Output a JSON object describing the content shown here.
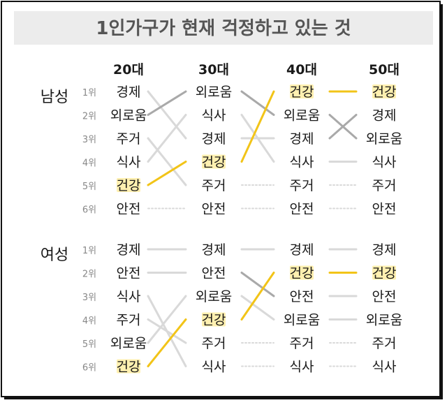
{
  "title": "1인가구가 현재 걱정하고 있는 것",
  "decades": [
    "20대",
    "30대",
    "40대",
    "50대"
  ],
  "rank_labels": [
    "1위",
    "2위",
    "3위",
    "4위",
    "5위",
    "6위"
  ],
  "highlight_item": "건강",
  "colors": {
    "highlight": "#f2c418",
    "highlight_bg": "#fff0b0",
    "dark_link": "#a9a9a9",
    "light_link": "#d9d9d9",
    "title_bg": "#ececec",
    "title_text": "#555555",
    "text": "#1a1a1a",
    "rank_text": "#888888",
    "border": "#111111"
  },
  "sections": [
    {
      "label": "남성",
      "columns": [
        [
          "경제",
          "외로움",
          "주거",
          "식사",
          "건강",
          "안전"
        ],
        [
          "외로움",
          "식사",
          "경제",
          "건강",
          "주거",
          "안전"
        ],
        [
          "건강",
          "외로움",
          "경제",
          "식사",
          "주거",
          "안전"
        ],
        [
          "건강",
          "경제",
          "외로움",
          "식사",
          "주거",
          "안전"
        ]
      ]
    },
    {
      "label": "여성",
      "columns": [
        [
          "경제",
          "안전",
          "식사",
          "주거",
          "외로움",
          "건강"
        ],
        [
          "경제",
          "안전",
          "외로움",
          "건강",
          "주거",
          "식사"
        ],
        [
          "경제",
          "건강",
          "안전",
          "외로움",
          "주거",
          "식사"
        ],
        [
          "경제",
          "건강",
          "안전",
          "외로움",
          "주거",
          "식사"
        ]
      ]
    }
  ]
}
